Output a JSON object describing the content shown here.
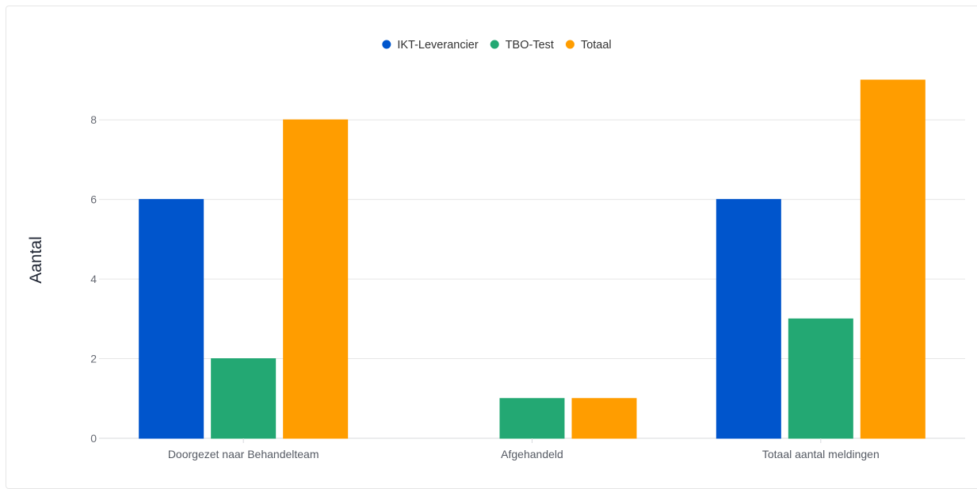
{
  "chart_data": {
    "type": "bar",
    "ylabel": "Aantal",
    "xlabel": "",
    "ylim": [
      0,
      9
    ],
    "yticks": [
      0,
      2,
      4,
      6,
      8
    ],
    "grid": true,
    "legend_position": "top-center",
    "categories": [
      "Doorgezet naar Behandelteam",
      "Afgehandeld",
      "Totaal aantal meldingen"
    ],
    "series": [
      {
        "name": "IKT-Leverancier",
        "color": "#0055cc",
        "values": [
          6,
          0,
          6
        ]
      },
      {
        "name": "TBO-Test",
        "color": "#23a873",
        "values": [
          2,
          1,
          3
        ]
      },
      {
        "name": "Totaal",
        "color": "#ff9d00",
        "values": [
          8,
          1,
          9
        ]
      }
    ]
  }
}
